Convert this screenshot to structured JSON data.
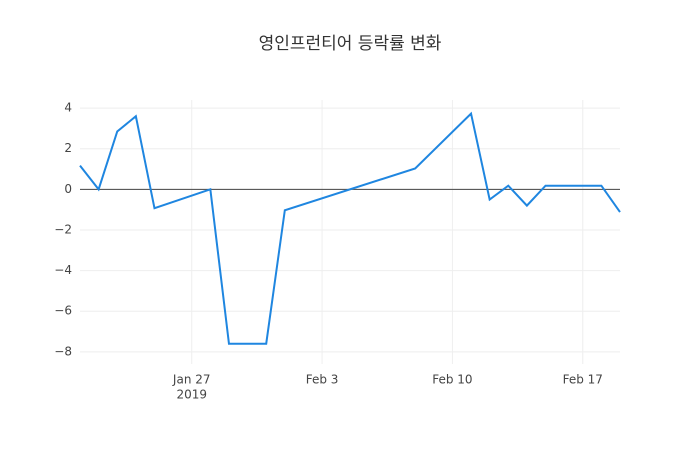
{
  "chart_data": {
    "type": "line",
    "title": "영인프런티어 등락률 변화",
    "x": [
      "2019-01-21",
      "2019-01-22",
      "2019-01-23",
      "2019-01-24",
      "2019-01-25",
      "2019-01-28",
      "2019-01-29",
      "2019-01-30",
      "2019-01-31",
      "2019-02-01",
      "2019-02-08",
      "2019-02-11",
      "2019-02-12",
      "2019-02-13",
      "2019-02-14",
      "2019-02-15",
      "2019-02-18",
      "2019-02-19"
    ],
    "series": [
      {
        "name": "영인프런티어",
        "color": "#1f86e0",
        "values": [
          1.17,
          0,
          2.85,
          3.6,
          -0.93,
          0,
          -7.6,
          -7.6,
          -7.6,
          -1.03,
          1.03,
          3.73,
          -0.5,
          0.18,
          -0.8,
          0.18,
          0.18,
          -1.12
        ]
      }
    ],
    "xlim": [
      "2019-01-21",
      "2019-02-19"
    ],
    "xticks": [
      {
        "value": "2019-01-27",
        "label": "Jan 27",
        "sublabel": "2019"
      },
      {
        "value": "2019-02-03",
        "label": "Feb 3"
      },
      {
        "value": "2019-02-10",
        "label": "Feb 10"
      },
      {
        "value": "2019-02-17",
        "label": "Feb 17"
      }
    ],
    "ylim": [
      -8.6,
      4.4
    ],
    "yticks": [
      {
        "value": -8,
        "label": "−8"
      },
      {
        "value": -6,
        "label": "−6"
      },
      {
        "value": -4,
        "label": "−4"
      },
      {
        "value": -2,
        "label": "−2"
      },
      0,
      2,
      4
    ],
    "grid": true,
    "zeroline": true
  }
}
